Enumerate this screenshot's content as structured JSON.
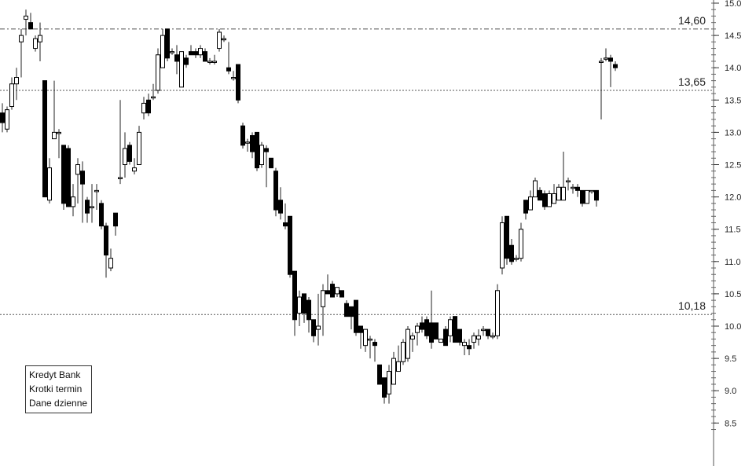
{
  "chart_data": {
    "type": "candlestick",
    "ylim": [
      8.4,
      15.1
    ],
    "y_ticks": [
      "15.0",
      "14.5",
      "14.0",
      "13.5",
      "13.0",
      "12.5",
      "12.0",
      "11.5",
      "11.0",
      "10.5",
      "10.0",
      "9.5",
      "9.0",
      "8.5"
    ],
    "y_tick_values": [
      15.0,
      14.5,
      14.0,
      13.5,
      13.0,
      12.5,
      12.0,
      11.5,
      11.0,
      10.5,
      10.0,
      9.5,
      9.0,
      8.5
    ],
    "grid": false,
    "colors": {
      "up_body": "#ffffff",
      "down_body": "#000000",
      "outline": "#000000",
      "levels": "#555555"
    },
    "levels": [
      {
        "value": 14.6,
        "label": "14,60",
        "style": "dash-dot"
      },
      {
        "value": 13.65,
        "label": "13,65",
        "style": "dotted"
      },
      {
        "value": 10.18,
        "label": "10,18",
        "style": "dotted"
      }
    ],
    "legend_position": "bottom-left",
    "legend_lines": [
      "Kredyt Bank",
      "Krotki termin",
      "Dane dzienne"
    ],
    "ohlc": [
      [
        13.3,
        13.45,
        13.0,
        13.15
      ],
      [
        13.05,
        13.4,
        13.0,
        13.35
      ],
      [
        13.4,
        13.85,
        13.35,
        13.75
      ],
      [
        13.75,
        14.0,
        13.5,
        13.85
      ],
      [
        14.4,
        14.6,
        13.85,
        14.5
      ],
      [
        14.75,
        14.9,
        14.5,
        14.8
      ],
      [
        14.7,
        14.85,
        14.6,
        14.6
      ],
      [
        14.3,
        14.5,
        14.25,
        14.45
      ],
      [
        14.4,
        14.7,
        14.1,
        14.5
      ],
      [
        13.8,
        13.8,
        12.0,
        12.0
      ],
      [
        11.95,
        12.6,
        11.9,
        12.45
      ],
      [
        12.9,
        13.8,
        12.9,
        13.0
      ],
      [
        13.0,
        13.05,
        12.6,
        13.0
      ],
      [
        12.8,
        12.8,
        11.8,
        11.9
      ],
      [
        12.75,
        12.8,
        11.85,
        11.85
      ],
      [
        11.85,
        12.2,
        11.7,
        12.0
      ],
      [
        12.35,
        12.6,
        11.9,
        12.5
      ],
      [
        12.4,
        12.55,
        11.6,
        12.2
      ],
      [
        11.95,
        12.0,
        11.6,
        11.75
      ],
      [
        11.85,
        12.2,
        11.6,
        11.85
      ],
      [
        12.1,
        12.2,
        11.8,
        12.1
      ],
      [
        11.9,
        11.95,
        11.5,
        11.55
      ],
      [
        11.55,
        11.6,
        10.75,
        11.1
      ],
      [
        10.9,
        11.2,
        10.85,
        11.05
      ],
      [
        11.75,
        11.75,
        11.4,
        11.55
      ],
      [
        12.3,
        13.5,
        12.2,
        12.3
      ],
      [
        12.5,
        13.0,
        12.3,
        12.75
      ],
      [
        12.8,
        12.85,
        12.5,
        12.55
      ],
      [
        12.4,
        12.6,
        12.35,
        12.45
      ],
      [
        12.5,
        13.1,
        12.5,
        13.0
      ],
      [
        13.3,
        13.55,
        13.2,
        13.45
      ],
      [
        13.5,
        13.6,
        13.25,
        13.3
      ],
      [
        13.55,
        13.75,
        13.5,
        13.55
      ],
      [
        13.65,
        14.3,
        13.6,
        14.2
      ],
      [
        14.0,
        14.6,
        14.0,
        14.5
      ],
      [
        14.6,
        14.6,
        14.1,
        14.15
      ],
      [
        14.25,
        14.3,
        14.2,
        14.25
      ],
      [
        14.2,
        14.35,
        13.9,
        14.1
      ],
      [
        13.7,
        14.25,
        13.7,
        14.25
      ],
      [
        14.15,
        14.2,
        14.0,
        14.05
      ],
      [
        14.25,
        14.35,
        14.2,
        14.2
      ],
      [
        14.25,
        14.3,
        14.15,
        14.2
      ],
      [
        14.2,
        14.35,
        14.15,
        14.3
      ],
      [
        14.25,
        14.3,
        14.1,
        14.1
      ],
      [
        14.1,
        14.15,
        14.05,
        14.1
      ],
      [
        14.1,
        14.2,
        14.05,
        14.1
      ],
      [
        14.3,
        14.6,
        14.25,
        14.55
      ],
      [
        14.45,
        14.5,
        14.4,
        14.45
      ],
      [
        14.0,
        14.4,
        13.9,
        13.95
      ],
      [
        13.85,
        13.95,
        13.8,
        13.85
      ],
      [
        14.05,
        14.05,
        13.45,
        13.5
      ],
      [
        13.1,
        13.15,
        12.75,
        12.8
      ],
      [
        12.85,
        12.9,
        12.7,
        12.85
      ],
      [
        12.95,
        13.0,
        12.6,
        12.7
      ],
      [
        13.0,
        13.0,
        12.4,
        12.45
      ],
      [
        12.5,
        12.85,
        12.45,
        12.8
      ],
      [
        12.75,
        12.8,
        12.15,
        12.7
      ],
      [
        12.6,
        12.6,
        12.45,
        12.45
      ],
      [
        12.4,
        12.45,
        11.7,
        11.8
      ],
      [
        11.95,
        12.15,
        11.65,
        11.75
      ],
      [
        11.6,
        11.9,
        11.5,
        11.55
      ],
      [
        11.7,
        11.7,
        10.75,
        10.8
      ],
      [
        10.85,
        10.85,
        9.85,
        10.1
      ],
      [
        10.2,
        10.55,
        10.0,
        10.45
      ],
      [
        10.5,
        10.5,
        10.05,
        10.2
      ],
      [
        10.4,
        10.45,
        9.9,
        10.1
      ],
      [
        10.1,
        10.1,
        9.75,
        9.85
      ],
      [
        9.95,
        10.5,
        9.7,
        10.0
      ],
      [
        10.3,
        10.65,
        9.85,
        10.55
      ],
      [
        10.55,
        10.8,
        10.5,
        10.5
      ],
      [
        10.65,
        10.7,
        10.45,
        10.45
      ],
      [
        10.5,
        10.6,
        10.45,
        10.6
      ],
      [
        10.55,
        10.55,
        10.45,
        10.45
      ],
      [
        10.35,
        10.4,
        10.15,
        10.15
      ],
      [
        10.3,
        10.3,
        9.95,
        10.15
      ],
      [
        10.4,
        10.4,
        9.85,
        9.9
      ],
      [
        10.0,
        10.0,
        9.65,
        9.9
      ],
      [
        9.7,
        9.95,
        9.6,
        9.95
      ],
      [
        9.8,
        9.85,
        9.5,
        9.8
      ],
      [
        9.75,
        9.8,
        9.45,
        9.7
      ],
      [
        9.4,
        9.4,
        9.1,
        9.1
      ],
      [
        9.2,
        9.2,
        8.8,
        8.9
      ],
      [
        8.95,
        9.4,
        8.8,
        9.3
      ],
      [
        9.1,
        9.6,
        9.1,
        9.5
      ],
      [
        9.3,
        9.7,
        9.3,
        9.45
      ],
      [
        9.45,
        9.8,
        9.4,
        9.75
      ],
      [
        9.5,
        10.0,
        9.45,
        9.95
      ],
      [
        9.8,
        9.9,
        9.6,
        9.85
      ],
      [
        9.9,
        10.05,
        9.7,
        10.0
      ],
      [
        10.05,
        10.15,
        9.9,
        9.95
      ],
      [
        10.1,
        10.15,
        9.8,
        9.85
      ],
      [
        10.05,
        10.55,
        9.65,
        9.75
      ],
      [
        10.05,
        10.05,
        9.8,
        9.8
      ],
      [
        9.75,
        9.8,
        9.75,
        9.8
      ],
      [
        9.95,
        10.0,
        9.7,
        9.7
      ],
      [
        9.85,
        10.15,
        9.75,
        10.1
      ],
      [
        10.15,
        10.15,
        9.75,
        9.75
      ],
      [
        9.95,
        9.95,
        9.7,
        9.75
      ],
      [
        9.7,
        9.8,
        9.55,
        9.75
      ],
      [
        9.7,
        9.8,
        9.55,
        9.65
      ],
      [
        9.75,
        9.9,
        9.65,
        9.85
      ],
      [
        9.8,
        9.95,
        9.7,
        9.85
      ],
      [
        9.95,
        10.0,
        9.85,
        9.95
      ],
      [
        9.95,
        9.95,
        9.8,
        9.85
      ],
      [
        9.85,
        9.9,
        9.8,
        9.85
      ],
      [
        9.85,
        10.65,
        9.8,
        10.55
      ],
      [
        10.9,
        11.7,
        10.8,
        11.6
      ],
      [
        11.7,
        11.7,
        10.95,
        11.05
      ],
      [
        11.25,
        11.35,
        10.95,
        11.0
      ],
      [
        11.05,
        11.1,
        11.0,
        11.05
      ],
      [
        11.05,
        11.6,
        11.0,
        11.5
      ],
      [
        11.95,
        11.95,
        11.65,
        11.75
      ],
      [
        11.8,
        12.1,
        11.8,
        12.0
      ],
      [
        12.0,
        12.3,
        12.0,
        12.25
      ],
      [
        12.1,
        12.15,
        11.95,
        11.95
      ],
      [
        12.05,
        12.1,
        11.8,
        11.85
      ],
      [
        11.85,
        12.1,
        11.85,
        12.05
      ],
      [
        11.9,
        12.2,
        11.9,
        12.05
      ],
      [
        11.95,
        12.2,
        11.95,
        12.15
      ],
      [
        11.95,
        12.7,
        11.95,
        12.15
      ],
      [
        12.25,
        12.3,
        12.1,
        12.25
      ],
      [
        12.15,
        12.2,
        12.05,
        12.15
      ],
      [
        12.15,
        12.2,
        12.0,
        12.1
      ],
      [
        12.1,
        12.1,
        11.85,
        11.9
      ],
      [
        11.9,
        12.1,
        11.9,
        12.1
      ],
      [
        12.1,
        12.1,
        12.05,
        12.1
      ],
      [
        12.1,
        12.1,
        11.85,
        11.95
      ],
      [
        14.1,
        14.15,
        13.2,
        14.1
      ],
      [
        14.15,
        14.3,
        14.1,
        14.15
      ],
      [
        14.15,
        14.2,
        13.7,
        14.1
      ],
      [
        14.05,
        14.1,
        13.95,
        14.0
      ]
    ]
  }
}
